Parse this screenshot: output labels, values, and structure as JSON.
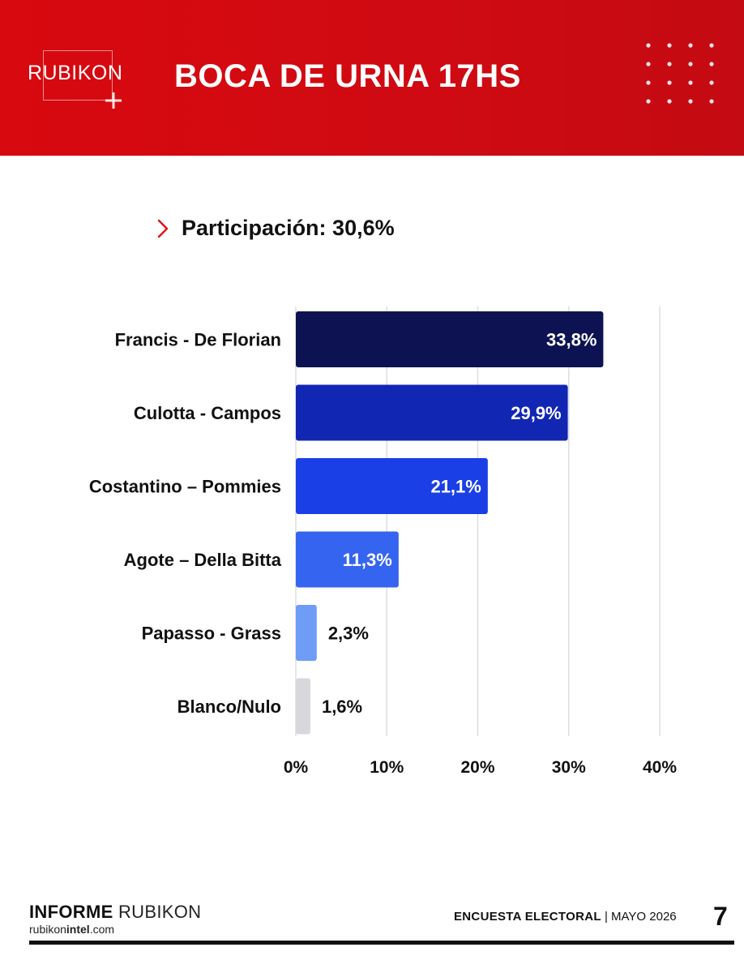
{
  "header": {
    "logo_text": "RUBIKON",
    "title": "BOCA DE URNA 17HS"
  },
  "participation": {
    "text": "Participación: 30,6%"
  },
  "chart_data": {
    "type": "bar",
    "orientation": "horizontal",
    "categories": [
      "Francis - De Florian",
      "Culotta - Campos",
      "Costantino – Pommies",
      "Agote – Della Bitta",
      "Papasso - Grass",
      "Blanco/Nulo"
    ],
    "values": [
      33.8,
      29.9,
      21.1,
      11.3,
      2.3,
      1.6
    ],
    "value_labels": [
      "33,8%",
      "29,9%",
      "21,1%",
      "11,3%",
      "2,3%",
      "1,6%"
    ],
    "colors": [
      "#0d1352",
      "#1226b4",
      "#1a3fe6",
      "#3564f0",
      "#6f9cf7",
      "#d8d8dc"
    ],
    "xlim": [
      0,
      40
    ],
    "x_ticks": [
      0,
      10,
      20,
      30,
      40
    ],
    "x_tick_labels": [
      "0%",
      "10%",
      "20%",
      "30%",
      "40%"
    ],
    "grid": true,
    "grid_color": "#dedede"
  },
  "footer": {
    "brand_bold": "INFORME",
    "brand_light": "RUBIKON",
    "url_pre": "rubikon",
    "url_bold": "intel",
    "url_post": ".com",
    "survey_bold": "ENCUESTA ELECTORAL",
    "survey_rest": "| MAYO 2026",
    "page_number": "7"
  },
  "colors": {
    "header_red": "#d8090f",
    "accent_red": "#e3131b"
  }
}
